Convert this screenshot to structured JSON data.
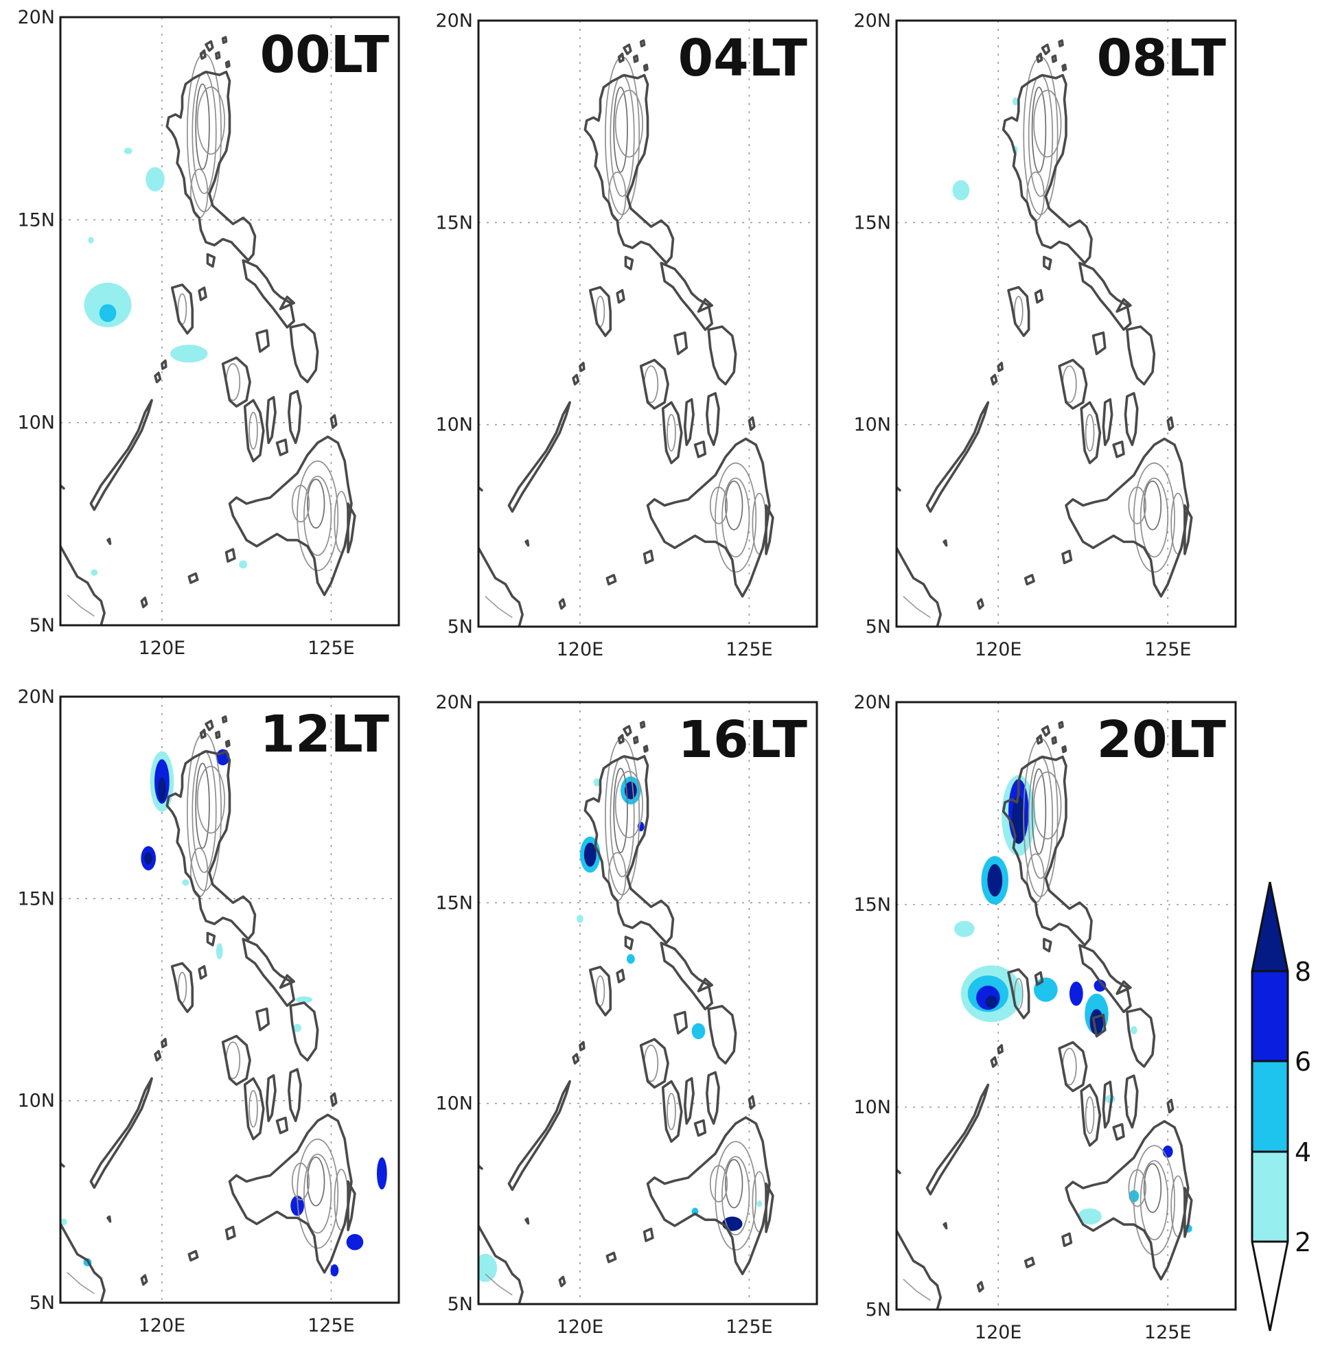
{
  "axis": {
    "lat_labels": [
      "20N",
      "15N",
      "10N",
      "5N"
    ],
    "lon_labels": [
      "120E",
      "125E"
    ],
    "lat_values": [
      20,
      15,
      10,
      5
    ],
    "lon_values": [
      120,
      125
    ],
    "lon_range": [
      117,
      127
    ],
    "lat_range": [
      5,
      20
    ]
  },
  "panels": [
    {
      "time": "00LT",
      "rain": [
        {
          "lon": 118.4,
          "lat": 12.9,
          "rx": 0.7,
          "ry": 0.55,
          "level": 1
        },
        {
          "lon": 118.4,
          "lat": 12.7,
          "rx": 0.25,
          "ry": 0.22,
          "level": 2
        },
        {
          "lon": 120.8,
          "lat": 11.7,
          "rx": 0.55,
          "ry": 0.22,
          "level": 1
        },
        {
          "lon": 119.8,
          "lat": 15.9,
          "rx": 0.15,
          "ry": 0.18,
          "level": 3
        },
        {
          "lon": 119.8,
          "lat": 16.0,
          "rx": 0.28,
          "ry": 0.3,
          "level": 1
        },
        {
          "lon": 119.0,
          "lat": 16.7,
          "rx": 0.12,
          "ry": 0.08,
          "level": 1
        },
        {
          "lon": 117.9,
          "lat": 14.5,
          "rx": 0.08,
          "ry": 0.08,
          "level": 1
        },
        {
          "lon": 122.4,
          "lat": 6.5,
          "rx": 0.12,
          "ry": 0.1,
          "level": 1
        },
        {
          "lon": 118.0,
          "lat": 6.3,
          "rx": 0.1,
          "ry": 0.08,
          "level": 1
        }
      ]
    },
    {
      "time": "04LT",
      "rain": []
    },
    {
      "time": "08LT",
      "rain": [
        {
          "lon": 118.9,
          "lat": 15.8,
          "rx": 0.25,
          "ry": 0.25,
          "level": 1
        },
        {
          "lon": 120.5,
          "lat": 18.0,
          "rx": 0.08,
          "ry": 0.1,
          "level": 1
        },
        {
          "lon": 120.5,
          "lat": 16.8,
          "rx": 0.08,
          "ry": 0.1,
          "level": 1
        }
      ]
    },
    {
      "time": "12LT",
      "rain": [
        {
          "lon": 120.0,
          "lat": 17.9,
          "rx": 0.35,
          "ry": 0.75,
          "level": 1
        },
        {
          "lon": 120.0,
          "lat": 17.9,
          "rx": 0.22,
          "ry": 0.55,
          "level": 3
        },
        {
          "lon": 120.0,
          "lat": 17.7,
          "rx": 0.12,
          "ry": 0.3,
          "level": 4
        },
        {
          "lon": 121.8,
          "lat": 18.5,
          "rx": 0.2,
          "ry": 0.2,
          "level": 3
        },
        {
          "lon": 119.6,
          "lat": 16.0,
          "rx": 0.22,
          "ry": 0.3,
          "level": 3
        },
        {
          "lon": 119.6,
          "lat": 16.0,
          "rx": 0.12,
          "ry": 0.15,
          "level": 4
        },
        {
          "lon": 120.7,
          "lat": 15.4,
          "rx": 0.1,
          "ry": 0.08,
          "level": 1
        },
        {
          "lon": 121.7,
          "lat": 13.7,
          "rx": 0.1,
          "ry": 0.2,
          "level": 1
        },
        {
          "lon": 124.2,
          "lat": 12.5,
          "rx": 0.25,
          "ry": 0.08,
          "level": 1
        },
        {
          "lon": 124.0,
          "lat": 11.8,
          "rx": 0.12,
          "ry": 0.1,
          "level": 1
        },
        {
          "lon": 124.0,
          "lat": 7.4,
          "rx": 0.2,
          "ry": 0.25,
          "level": 3
        },
        {
          "lon": 126.5,
          "lat": 8.2,
          "rx": 0.15,
          "ry": 0.4,
          "level": 3
        },
        {
          "lon": 125.7,
          "lat": 6.5,
          "rx": 0.25,
          "ry": 0.2,
          "level": 3
        },
        {
          "lon": 125.1,
          "lat": 5.8,
          "rx": 0.12,
          "ry": 0.15,
          "level": 3
        },
        {
          "lon": 117.1,
          "lat": 7.0,
          "rx": 0.1,
          "ry": 0.08,
          "level": 1
        },
        {
          "lon": 117.8,
          "lat": 6.0,
          "rx": 0.12,
          "ry": 0.1,
          "level": 2
        }
      ]
    },
    {
      "time": "16LT",
      "rain": [
        {
          "lon": 121.5,
          "lat": 17.8,
          "rx": 0.3,
          "ry": 0.35,
          "level": 2
        },
        {
          "lon": 121.5,
          "lat": 17.8,
          "rx": 0.18,
          "ry": 0.22,
          "level": 4
        },
        {
          "lon": 121.8,
          "lat": 16.9,
          "rx": 0.1,
          "ry": 0.12,
          "level": 3
        },
        {
          "lon": 120.3,
          "lat": 16.2,
          "rx": 0.3,
          "ry": 0.45,
          "level": 2
        },
        {
          "lon": 120.3,
          "lat": 16.2,
          "rx": 0.18,
          "ry": 0.3,
          "level": 4
        },
        {
          "lon": 120.5,
          "lat": 18.0,
          "rx": 0.1,
          "ry": 0.1,
          "level": 1
        },
        {
          "lon": 120.0,
          "lat": 14.6,
          "rx": 0.1,
          "ry": 0.1,
          "level": 1
        },
        {
          "lon": 121.5,
          "lat": 13.6,
          "rx": 0.12,
          "ry": 0.12,
          "level": 2
        },
        {
          "lon": 123.5,
          "lat": 11.8,
          "rx": 0.2,
          "ry": 0.2,
          "level": 2
        },
        {
          "lon": 124.5,
          "lat": 7.0,
          "rx": 0.3,
          "ry": 0.18,
          "level": 4
        },
        {
          "lon": 123.4,
          "lat": 7.3,
          "rx": 0.1,
          "ry": 0.1,
          "level": 2
        },
        {
          "lon": 125.3,
          "lat": 7.5,
          "rx": 0.08,
          "ry": 0.08,
          "level": 1
        },
        {
          "lon": 117.2,
          "lat": 6.0,
          "rx": 0.22,
          "ry": 0.25,
          "level": 4
        },
        {
          "lon": 117.2,
          "lat": 5.9,
          "rx": 0.35,
          "ry": 0.35,
          "level": 1
        }
      ]
    },
    {
      "time": "20LT",
      "rain": [
        {
          "lon": 120.6,
          "lat": 17.2,
          "rx": 0.5,
          "ry": 1.0,
          "level": 1
        },
        {
          "lon": 120.6,
          "lat": 17.3,
          "rx": 0.3,
          "ry": 0.8,
          "level": 3
        },
        {
          "lon": 120.6,
          "lat": 17.1,
          "rx": 0.2,
          "ry": 0.6,
          "level": 4
        },
        {
          "lon": 119.9,
          "lat": 15.6,
          "rx": 0.4,
          "ry": 0.6,
          "level": 2
        },
        {
          "lon": 119.9,
          "lat": 15.6,
          "rx": 0.22,
          "ry": 0.4,
          "level": 4
        },
        {
          "lon": 119.0,
          "lat": 14.4,
          "rx": 0.3,
          "ry": 0.2,
          "level": 1
        },
        {
          "lon": 119.8,
          "lat": 12.8,
          "rx": 0.9,
          "ry": 0.7,
          "level": 1
        },
        {
          "lon": 119.7,
          "lat": 12.8,
          "rx": 0.6,
          "ry": 0.45,
          "level": 2
        },
        {
          "lon": 119.7,
          "lat": 12.7,
          "rx": 0.35,
          "ry": 0.3,
          "level": 3
        },
        {
          "lon": 119.8,
          "lat": 12.6,
          "rx": 0.18,
          "ry": 0.15,
          "level": 4
        },
        {
          "lon": 121.4,
          "lat": 12.9,
          "rx": 0.35,
          "ry": 0.3,
          "level": 2
        },
        {
          "lon": 122.9,
          "lat": 12.3,
          "rx": 0.35,
          "ry": 0.5,
          "level": 2
        },
        {
          "lon": 122.9,
          "lat": 12.1,
          "rx": 0.2,
          "ry": 0.32,
          "level": 4
        },
        {
          "lon": 122.3,
          "lat": 12.8,
          "rx": 0.2,
          "ry": 0.3,
          "level": 3
        },
        {
          "lon": 123.0,
          "lat": 13.0,
          "rx": 0.18,
          "ry": 0.15,
          "level": 3
        },
        {
          "lon": 124.0,
          "lat": 11.9,
          "rx": 0.1,
          "ry": 0.1,
          "level": 1
        },
        {
          "lon": 123.3,
          "lat": 10.2,
          "rx": 0.15,
          "ry": 0.1,
          "level": 1
        },
        {
          "lon": 125.0,
          "lat": 8.9,
          "rx": 0.15,
          "ry": 0.15,
          "level": 3
        },
        {
          "lon": 124.0,
          "lat": 7.8,
          "rx": 0.15,
          "ry": 0.15,
          "level": 2
        },
        {
          "lon": 122.7,
          "lat": 7.3,
          "rx": 0.35,
          "ry": 0.2,
          "level": 1
        },
        {
          "lon": 125.6,
          "lat": 7.0,
          "rx": 0.12,
          "ry": 0.1,
          "level": 2
        }
      ]
    }
  ],
  "colorbar": {
    "levels": [
      "2",
      "4",
      "6",
      "8"
    ],
    "colors": [
      "#ffffff",
      "#96eeef",
      "#1ec3ee",
      "#0a1ee0",
      "#041a84"
    ]
  }
}
